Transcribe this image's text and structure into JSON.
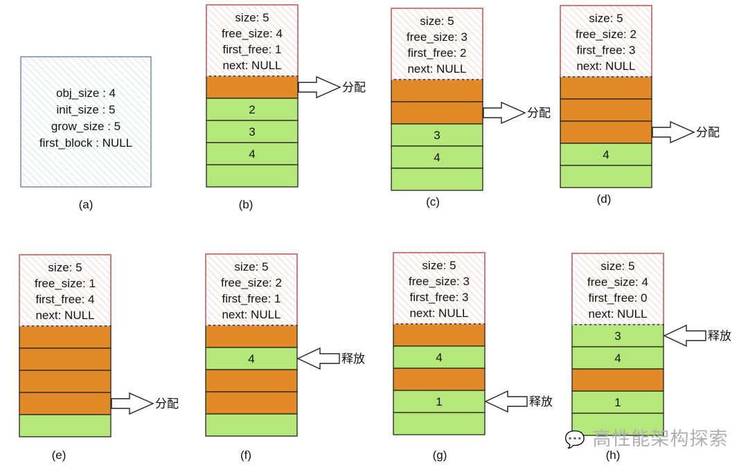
{
  "colors": {
    "allocated": "#e38a28",
    "free": "#b4e87a",
    "header_border": "#c0504d",
    "header_hatch": "#f2c4c4",
    "config_border": "#6c8ebf",
    "config_hatch": "#c9d8ee"
  },
  "config_box": {
    "lines": [
      "obj_size : 4",
      "init_size : 5",
      "grow_size : 5",
      "first_block : NULL"
    ],
    "caption": "(a)"
  },
  "arrow_labels": {
    "alloc": "分配",
    "free": "释放"
  },
  "panels": [
    {
      "caption": "(b)",
      "header": [
        "size: 5",
        "free_size: 4",
        "first_free: 1",
        "next: NULL"
      ],
      "blocks": [
        {
          "state": "allocated",
          "label": ""
        },
        {
          "state": "free",
          "label": "2"
        },
        {
          "state": "free",
          "label": "3"
        },
        {
          "state": "free",
          "label": "4"
        },
        {
          "state": "free",
          "label": ""
        }
      ],
      "arrow": {
        "row": 0,
        "kind": "alloc"
      }
    },
    {
      "caption": "(c)",
      "header": [
        "size: 5",
        "free_size: 3",
        "first_free: 2",
        "next: NULL"
      ],
      "blocks": [
        {
          "state": "allocated",
          "label": ""
        },
        {
          "state": "allocated",
          "label": ""
        },
        {
          "state": "free",
          "label": "3"
        },
        {
          "state": "free",
          "label": "4"
        },
        {
          "state": "free",
          "label": ""
        }
      ],
      "arrow": {
        "row": 1,
        "kind": "alloc"
      }
    },
    {
      "caption": "(d)",
      "header": [
        "size: 5",
        "free_size: 2",
        "first_free: 3",
        "next: NULL"
      ],
      "blocks": [
        {
          "state": "allocated",
          "label": ""
        },
        {
          "state": "allocated",
          "label": ""
        },
        {
          "state": "allocated",
          "label": ""
        },
        {
          "state": "free",
          "label": "4"
        },
        {
          "state": "free",
          "label": ""
        }
      ],
      "arrow": {
        "row": 2,
        "kind": "alloc"
      }
    },
    {
      "caption": "(e)",
      "header": [
        "size: 5",
        "free_size: 1",
        "first_free: 4",
        "next: NULL"
      ],
      "blocks": [
        {
          "state": "allocated",
          "label": ""
        },
        {
          "state": "allocated",
          "label": ""
        },
        {
          "state": "allocated",
          "label": ""
        },
        {
          "state": "allocated",
          "label": ""
        },
        {
          "state": "free",
          "label": ""
        }
      ],
      "arrow": {
        "row": 3,
        "kind": "alloc"
      }
    },
    {
      "caption": "(f)",
      "header": [
        "size: 5",
        "free_size: 2",
        "first_free: 1",
        "next: NULL"
      ],
      "blocks": [
        {
          "state": "allocated",
          "label": ""
        },
        {
          "state": "free",
          "label": "4"
        },
        {
          "state": "allocated",
          "label": ""
        },
        {
          "state": "allocated",
          "label": ""
        },
        {
          "state": "free",
          "label": ""
        }
      ],
      "arrow": {
        "row": 1,
        "kind": "free"
      }
    },
    {
      "caption": "(g)",
      "header": [
        "size: 5",
        "free_size: 3",
        "first_free: 3",
        "next: NULL"
      ],
      "blocks": [
        {
          "state": "allocated",
          "label": ""
        },
        {
          "state": "free",
          "label": "4"
        },
        {
          "state": "allocated",
          "label": ""
        },
        {
          "state": "free",
          "label": "1"
        },
        {
          "state": "free",
          "label": ""
        }
      ],
      "arrow": {
        "row": 3,
        "kind": "free"
      }
    },
    {
      "caption": "(h)",
      "header": [
        "size: 5",
        "free_size: 4",
        "first_free: 0",
        "next: NULL"
      ],
      "blocks": [
        {
          "state": "free",
          "label": "3"
        },
        {
          "state": "free",
          "label": "4"
        },
        {
          "state": "allocated",
          "label": ""
        },
        {
          "state": "free",
          "label": "1"
        },
        {
          "state": "free",
          "label": ""
        }
      ],
      "arrow": {
        "row": 0,
        "kind": "free"
      }
    }
  ],
  "watermark": "高性能架构探索"
}
